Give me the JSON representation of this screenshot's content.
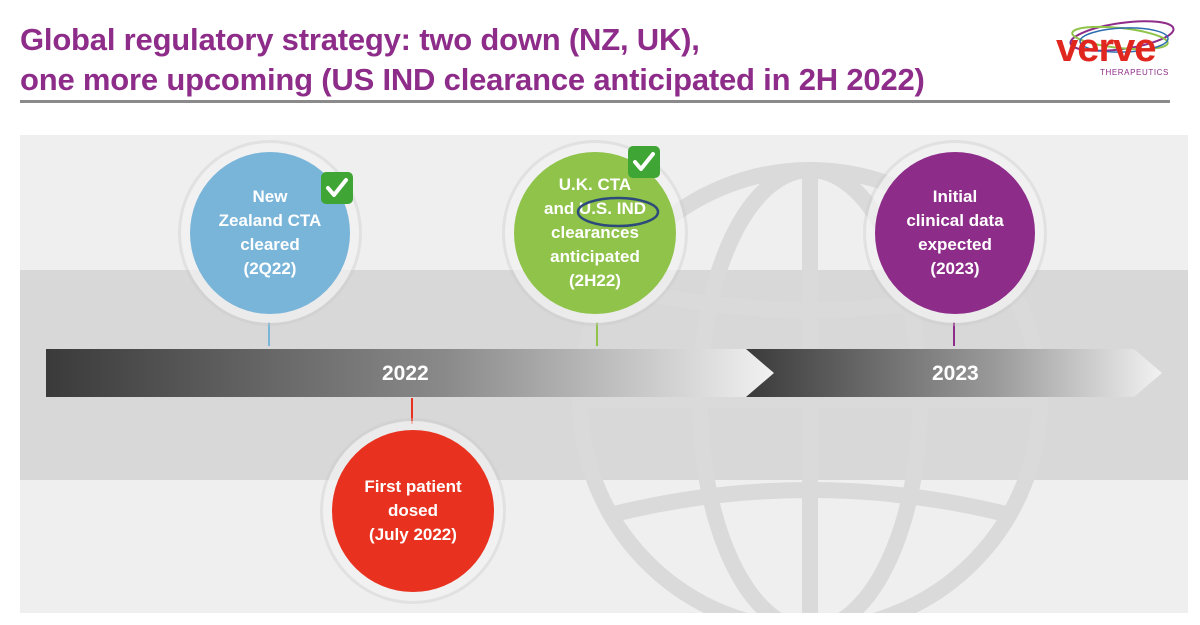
{
  "slide": {
    "title_line1": "Global regulatory strategy:  two down (NZ, UK),",
    "title_line2": "one more upcoming (US IND clearance anticipated in 2H 2022)"
  },
  "logo": {
    "wordmark": "verve",
    "subtitle": "THERAPEUTICS",
    "colors": {
      "wordmark": "#e0271f",
      "swoosh_purple": "#8e2c8a",
      "swoosh_green": "#8fc34a",
      "swoosh_blue": "#2b6cb0"
    }
  },
  "timeline": {
    "years": [
      "2022",
      "2023"
    ]
  },
  "milestones": [
    {
      "label": "New\nZealand CTA\ncleared\n(2Q22)",
      "color": "#79b4d9",
      "completed": true,
      "icon": "check-mark-icon"
    },
    {
      "label": "U.K. CTA\nand U.S. IND\nclearances\nanticipated\n(2H22)",
      "color": "#8fc34a",
      "completed": true,
      "icon": "check-mark-icon",
      "highlight": "U.S. IND"
    },
    {
      "label": "Initial\nclinical data\nexpected\n(2023)",
      "color": "#8e2c8a",
      "completed": false
    },
    {
      "label": "First patient\ndosed\n(July 2022)",
      "color": "#e8321f",
      "completed": false
    }
  ],
  "colors": {
    "title": "#8e2c8a",
    "check_badge": "#3fa535",
    "highlight_oval": "#2c4a7a"
  }
}
